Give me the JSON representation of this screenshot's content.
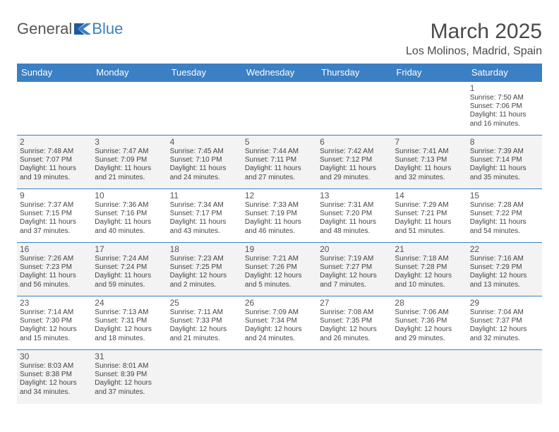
{
  "logo": {
    "part1": "General",
    "part2": "Blue"
  },
  "title": "March 2025",
  "location": "Los Molinos, Madrid, Spain",
  "colors": {
    "header_bg": "#3b7fc4",
    "border": "#3b7fc4",
    "alt_row": "#f3f3f3"
  },
  "weekdays": [
    "Sunday",
    "Monday",
    "Tuesday",
    "Wednesday",
    "Thursday",
    "Friday",
    "Saturday"
  ],
  "weeks": [
    [
      null,
      null,
      null,
      null,
      null,
      null,
      {
        "n": "1",
        "sr": "Sunrise: 7:50 AM",
        "ss": "Sunset: 7:06 PM",
        "d1": "Daylight: 11 hours",
        "d2": "and 16 minutes."
      }
    ],
    [
      {
        "n": "2",
        "sr": "Sunrise: 7:48 AM",
        "ss": "Sunset: 7:07 PM",
        "d1": "Daylight: 11 hours",
        "d2": "and 19 minutes."
      },
      {
        "n": "3",
        "sr": "Sunrise: 7:47 AM",
        "ss": "Sunset: 7:09 PM",
        "d1": "Daylight: 11 hours",
        "d2": "and 21 minutes."
      },
      {
        "n": "4",
        "sr": "Sunrise: 7:45 AM",
        "ss": "Sunset: 7:10 PM",
        "d1": "Daylight: 11 hours",
        "d2": "and 24 minutes."
      },
      {
        "n": "5",
        "sr": "Sunrise: 7:44 AM",
        "ss": "Sunset: 7:11 PM",
        "d1": "Daylight: 11 hours",
        "d2": "and 27 minutes."
      },
      {
        "n": "6",
        "sr": "Sunrise: 7:42 AM",
        "ss": "Sunset: 7:12 PM",
        "d1": "Daylight: 11 hours",
        "d2": "and 29 minutes."
      },
      {
        "n": "7",
        "sr": "Sunrise: 7:41 AM",
        "ss": "Sunset: 7:13 PM",
        "d1": "Daylight: 11 hours",
        "d2": "and 32 minutes."
      },
      {
        "n": "8",
        "sr": "Sunrise: 7:39 AM",
        "ss": "Sunset: 7:14 PM",
        "d1": "Daylight: 11 hours",
        "d2": "and 35 minutes."
      }
    ],
    [
      {
        "n": "9",
        "sr": "Sunrise: 7:37 AM",
        "ss": "Sunset: 7:15 PM",
        "d1": "Daylight: 11 hours",
        "d2": "and 37 minutes."
      },
      {
        "n": "10",
        "sr": "Sunrise: 7:36 AM",
        "ss": "Sunset: 7:16 PM",
        "d1": "Daylight: 11 hours",
        "d2": "and 40 minutes."
      },
      {
        "n": "11",
        "sr": "Sunrise: 7:34 AM",
        "ss": "Sunset: 7:17 PM",
        "d1": "Daylight: 11 hours",
        "d2": "and 43 minutes."
      },
      {
        "n": "12",
        "sr": "Sunrise: 7:33 AM",
        "ss": "Sunset: 7:19 PM",
        "d1": "Daylight: 11 hours",
        "d2": "and 46 minutes."
      },
      {
        "n": "13",
        "sr": "Sunrise: 7:31 AM",
        "ss": "Sunset: 7:20 PM",
        "d1": "Daylight: 11 hours",
        "d2": "and 48 minutes."
      },
      {
        "n": "14",
        "sr": "Sunrise: 7:29 AM",
        "ss": "Sunset: 7:21 PM",
        "d1": "Daylight: 11 hours",
        "d2": "and 51 minutes."
      },
      {
        "n": "15",
        "sr": "Sunrise: 7:28 AM",
        "ss": "Sunset: 7:22 PM",
        "d1": "Daylight: 11 hours",
        "d2": "and 54 minutes."
      }
    ],
    [
      {
        "n": "16",
        "sr": "Sunrise: 7:26 AM",
        "ss": "Sunset: 7:23 PM",
        "d1": "Daylight: 11 hours",
        "d2": "and 56 minutes."
      },
      {
        "n": "17",
        "sr": "Sunrise: 7:24 AM",
        "ss": "Sunset: 7:24 PM",
        "d1": "Daylight: 11 hours",
        "d2": "and 59 minutes."
      },
      {
        "n": "18",
        "sr": "Sunrise: 7:23 AM",
        "ss": "Sunset: 7:25 PM",
        "d1": "Daylight: 12 hours",
        "d2": "and 2 minutes."
      },
      {
        "n": "19",
        "sr": "Sunrise: 7:21 AM",
        "ss": "Sunset: 7:26 PM",
        "d1": "Daylight: 12 hours",
        "d2": "and 5 minutes."
      },
      {
        "n": "20",
        "sr": "Sunrise: 7:19 AM",
        "ss": "Sunset: 7:27 PM",
        "d1": "Daylight: 12 hours",
        "d2": "and 7 minutes."
      },
      {
        "n": "21",
        "sr": "Sunrise: 7:18 AM",
        "ss": "Sunset: 7:28 PM",
        "d1": "Daylight: 12 hours",
        "d2": "and 10 minutes."
      },
      {
        "n": "22",
        "sr": "Sunrise: 7:16 AM",
        "ss": "Sunset: 7:29 PM",
        "d1": "Daylight: 12 hours",
        "d2": "and 13 minutes."
      }
    ],
    [
      {
        "n": "23",
        "sr": "Sunrise: 7:14 AM",
        "ss": "Sunset: 7:30 PM",
        "d1": "Daylight: 12 hours",
        "d2": "and 15 minutes."
      },
      {
        "n": "24",
        "sr": "Sunrise: 7:13 AM",
        "ss": "Sunset: 7:31 PM",
        "d1": "Daylight: 12 hours",
        "d2": "and 18 minutes."
      },
      {
        "n": "25",
        "sr": "Sunrise: 7:11 AM",
        "ss": "Sunset: 7:33 PM",
        "d1": "Daylight: 12 hours",
        "d2": "and 21 minutes."
      },
      {
        "n": "26",
        "sr": "Sunrise: 7:09 AM",
        "ss": "Sunset: 7:34 PM",
        "d1": "Daylight: 12 hours",
        "d2": "and 24 minutes."
      },
      {
        "n": "27",
        "sr": "Sunrise: 7:08 AM",
        "ss": "Sunset: 7:35 PM",
        "d1": "Daylight: 12 hours",
        "d2": "and 26 minutes."
      },
      {
        "n": "28",
        "sr": "Sunrise: 7:06 AM",
        "ss": "Sunset: 7:36 PM",
        "d1": "Daylight: 12 hours",
        "d2": "and 29 minutes."
      },
      {
        "n": "29",
        "sr": "Sunrise: 7:04 AM",
        "ss": "Sunset: 7:37 PM",
        "d1": "Daylight: 12 hours",
        "d2": "and 32 minutes."
      }
    ],
    [
      {
        "n": "30",
        "sr": "Sunrise: 8:03 AM",
        "ss": "Sunset: 8:38 PM",
        "d1": "Daylight: 12 hours",
        "d2": "and 34 minutes."
      },
      {
        "n": "31",
        "sr": "Sunrise: 8:01 AM",
        "ss": "Sunset: 8:39 PM",
        "d1": "Daylight: 12 hours",
        "d2": "and 37 minutes."
      },
      null,
      null,
      null,
      null,
      null
    ]
  ]
}
